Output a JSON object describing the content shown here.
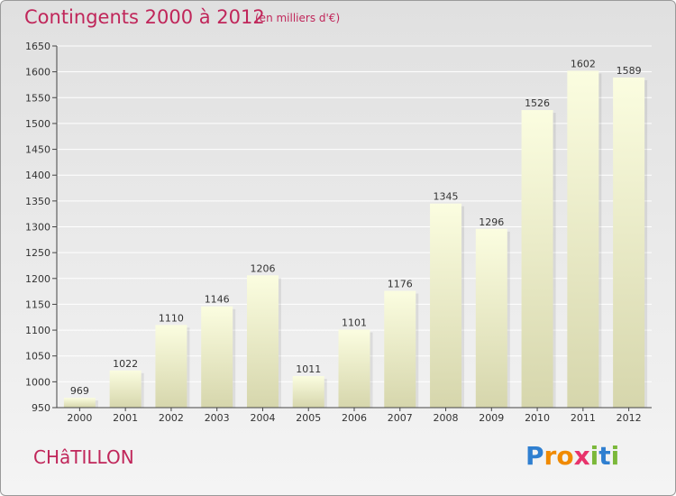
{
  "header": {
    "title": "Contingents 2000 à 2012",
    "subtitle": "(en milliers d'€)"
  },
  "footer": {
    "commune": "CHâTILLON",
    "logo_letters": [
      {
        "ch": "P",
        "color": "#2f7fd0"
      },
      {
        "ch": "r",
        "color": "#f08a00"
      },
      {
        "ch": "o",
        "color": "#f08a00"
      },
      {
        "ch": "x",
        "color": "#e8336b"
      },
      {
        "ch": "i",
        "color": "#7bb83a"
      },
      {
        "ch": "t",
        "color": "#2f7fd0"
      },
      {
        "ch": "i",
        "color": "#7bb83a"
      }
    ]
  },
  "chart_data": {
    "type": "bar",
    "title": "Contingents 2000 à 2012",
    "subtitle": "(en milliers d'€)",
    "categories": [
      "2000",
      "2001",
      "2002",
      "2003",
      "2004",
      "2005",
      "2006",
      "2007",
      "2008",
      "2009",
      "2010",
      "2011",
      "2012"
    ],
    "values": [
      969,
      1022,
      1110,
      1146,
      1206,
      1011,
      1101,
      1176,
      1345,
      1296,
      1526,
      1602,
      1589
    ],
    "ylim": [
      950,
      1650
    ],
    "yticks": [
      950,
      1000,
      1050,
      1100,
      1150,
      1200,
      1250,
      1300,
      1350,
      1400,
      1450,
      1500,
      1550,
      1600,
      1650
    ],
    "grid": true,
    "bar_colors": {
      "top": "#fbfde0",
      "bottom": "#d6d6ac"
    }
  }
}
